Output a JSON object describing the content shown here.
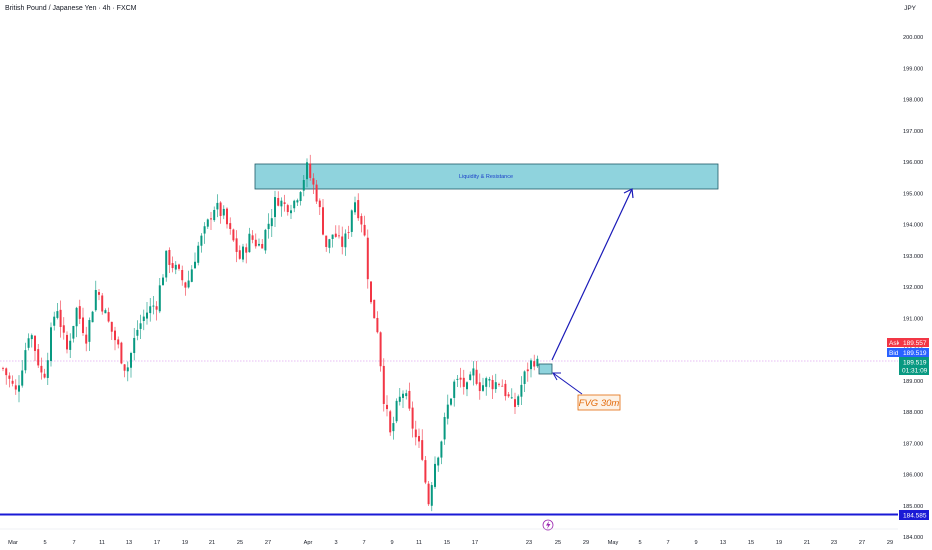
{
  "header": {
    "symbol_title": "British Pound / Japanese Yen · 4h · FXCM",
    "currency": "JPY"
  },
  "colors": {
    "bull": "#089981",
    "bear": "#f23645",
    "zone_fill": "#8fd3dd",
    "zone_border": "#1e5a66",
    "arrow": "#1a1ab8",
    "support_line": "#1a1ad6",
    "fvg_text": "#e36a0a",
    "fvg_border": "#e36a0a",
    "ask_bg": "#f23645",
    "bid_bg": "#2962ff",
    "last_bg": "#089981",
    "support_bg": "#1a1ad6"
  },
  "chart_data": {
    "type": "candlestick",
    "timeframe": "4h",
    "y_ticks": [
      "200.000",
      "199.000",
      "198.000",
      "197.000",
      "196.000",
      "195.000",
      "194.000",
      "193.000",
      "192.000",
      "191.000",
      "190.000",
      "189.000",
      "188.000",
      "187.000",
      "186.000",
      "185.000",
      "184.000"
    ],
    "x_ticks": [
      "Mar",
      "5",
      "7",
      "11",
      "13",
      "17",
      "19",
      "21",
      "25",
      "27",
      "Apr",
      "3",
      "7",
      "9",
      "11",
      "15",
      "17",
      "23",
      "25",
      "29",
      "May",
      "5",
      "7",
      "9",
      "13",
      "15",
      "19",
      "21",
      "23",
      "27",
      "29"
    ],
    "ylim": [
      184.0,
      200.0
    ],
    "approx_close_path": [
      [
        0,
        189.4
      ],
      [
        4,
        188.6
      ],
      [
        8,
        190.7
      ],
      [
        12,
        189.0
      ],
      [
        16,
        191.5
      ],
      [
        19,
        189.9
      ],
      [
        22,
        191.3
      ],
      [
        25,
        190.4
      ],
      [
        28,
        192.0
      ],
      [
        31,
        191.0
      ],
      [
        34,
        190.2
      ],
      [
        37,
        189.3
      ],
      [
        40,
        190.6
      ],
      [
        43,
        191.2
      ],
      [
        46,
        191.5
      ],
      [
        49,
        193.0
      ],
      [
        52,
        192.5
      ],
      [
        55,
        192.0
      ],
      [
        58,
        193.2
      ],
      [
        61,
        193.9
      ],
      [
        63,
        194.6
      ],
      [
        66,
        194.3
      ],
      [
        68,
        193.7
      ],
      [
        71,
        192.9
      ],
      [
        74,
        193.6
      ],
      [
        77,
        193.3
      ],
      [
        80,
        194.2
      ],
      [
        82,
        194.9
      ],
      [
        84,
        194.6
      ],
      [
        87,
        194.7
      ],
      [
        89,
        195.2
      ],
      [
        91,
        195.8
      ],
      [
        94,
        194.9
      ],
      [
        97,
        193.2
      ],
      [
        99,
        193.8
      ],
      [
        101,
        193.3
      ],
      [
        103,
        193.6
      ],
      [
        105,
        194.9
      ],
      [
        108,
        193.9
      ],
      [
        110,
        191.5
      ],
      [
        112,
        190.8
      ],
      [
        114,
        188.5
      ],
      [
        116,
        187.2
      ],
      [
        118,
        188.2
      ],
      [
        120,
        188.7
      ],
      [
        122,
        187.8
      ],
      [
        124,
        187.0
      ],
      [
        126,
        186.6
      ],
      [
        127,
        184.8
      ],
      [
        129,
        186.3
      ],
      [
        131,
        187.0
      ],
      [
        133,
        188.1
      ],
      [
        135,
        188.9
      ],
      [
        137,
        189.0
      ],
      [
        139,
        188.7
      ],
      [
        141,
        189.3
      ],
      [
        143,
        188.8
      ],
      [
        145,
        189.0
      ],
      [
        147,
        188.9
      ],
      [
        149,
        189.0
      ],
      [
        151,
        188.5
      ],
      [
        153,
        188.1
      ],
      [
        155,
        188.8
      ],
      [
        157,
        189.4
      ],
      [
        159,
        189.7
      ],
      [
        160,
        189.52
      ]
    ],
    "current_price": {
      "ask": "189.557",
      "bid": "189.519",
      "last": "189.519",
      "countdown": "01:31:09"
    },
    "support_level": "184.585",
    "annotations": {
      "zone_label": "Liquidity & Resistance",
      "fvg_label": "FVG 30m"
    }
  }
}
